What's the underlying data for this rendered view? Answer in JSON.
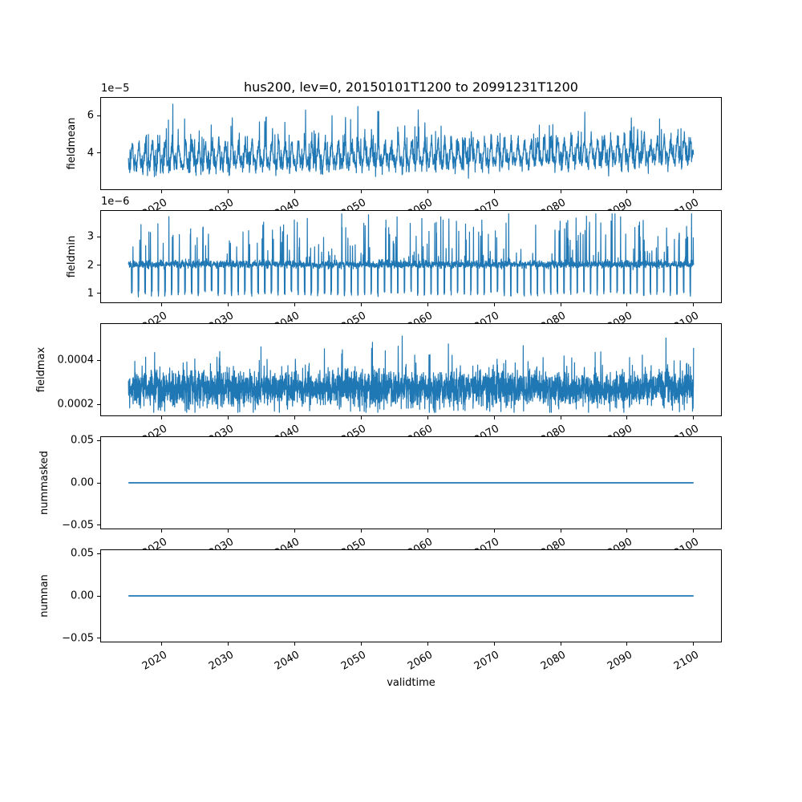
{
  "title": "hus200, lev=0, 20150101T1200 to 20991231T1200",
  "xlabel": "validtime",
  "line_color": "#1f77b4",
  "axis_color": "#000000",
  "chart_data": {
    "type": "line",
    "title": "hus200, lev=0, 20150101T1200 to 20991231T1200",
    "xlabel": "validtime",
    "legend": "none",
    "grid": false,
    "x_data_range": [
      2015.0,
      2100.0
    ],
    "xlim": [
      2010.75,
      2104.25
    ],
    "xticks": [
      2020,
      2030,
      2040,
      2050,
      2060,
      2070,
      2080,
      2090,
      2100
    ],
    "xtick_labels": [
      "2020",
      "2030",
      "2040",
      "2050",
      "2060",
      "2070",
      "2080",
      "2090",
      "2100"
    ],
    "xtick_rotation_deg": 30,
    "panels": [
      {
        "name": "fieldmean",
        "ylabel": "fieldmean",
        "offset_text": "1e−5",
        "unit_scale": 1e-05,
        "ylim": [
          2.0,
          7.0
        ],
        "yticks": [
          {
            "v": 4,
            "label": "4"
          },
          {
            "v": 6,
            "label": "6"
          }
        ],
        "series_model": {
          "kind": "seasonal",
          "seed": 1337,
          "points_per_year": 36,
          "base": 3.7,
          "trend": 0.28,
          "season": [
            [
              1,
              0.52,
              4.2
            ],
            [
              2,
              0.24,
              1.1
            ],
            [
              3,
              0.12,
              2.0
            ]
          ],
          "noise": 0.22,
          "spike_prob": 0.06,
          "spike_amp": 2.1,
          "dip_prob": 0.006,
          "dip_amp": 1.0,
          "clamp": [
            2.3,
            6.62
          ]
        },
        "line_width": 1.2
      },
      {
        "name": "fieldmin",
        "ylabel": "fieldmin",
        "offset_text": "1e−6",
        "unit_scale": 1e-06,
        "ylim": [
          0.65,
          3.95
        ],
        "yticks": [
          {
            "v": 1,
            "label": "1"
          },
          {
            "v": 2,
            "label": "2"
          },
          {
            "v": 3,
            "label": "3"
          }
        ],
        "series_model": {
          "kind": "dipper",
          "seed": 2021,
          "points_per_year": 40,
          "base": 2.03,
          "noise": 0.06,
          "dip_window": [
            0.45,
            0.57
          ],
          "dip_level": 1.04,
          "dip_noise": 0.07,
          "spike_prob": 0.08,
          "spike_amp": 1.6,
          "late_boost": 0.25,
          "deep_dip_prob": 0.0008,
          "deep_dip_level": 0.78,
          "clamp": [
            0.74,
            3.82
          ]
        },
        "line_width": 1.2
      },
      {
        "name": "fieldmax",
        "ylabel": "fieldmax",
        "offset_text": null,
        "unit_scale": 1,
        "ylim": [
          0.000145,
          0.00057
        ],
        "yticks": [
          {
            "v": 0.0002,
            "label": "0.0002"
          },
          {
            "v": 0.0004,
            "label": "0.0004"
          }
        ],
        "series_model": {
          "kind": "noise",
          "seed": 777,
          "points_per_year": 40,
          "base": 0.000272,
          "noise": 4.1e-05,
          "spike_prob": 0.055,
          "spike_amp": 0.00016,
          "dip_prob": 0.02,
          "dip_amp": 6e-05,
          "clamp": [
            0.000163,
            0.00055
          ]
        },
        "line_width": 1.2
      },
      {
        "name": "nummasked",
        "ylabel": "nummasked",
        "offset_text": null,
        "unit_scale": 1,
        "ylim": [
          -0.055,
          0.055
        ],
        "yticks": [
          {
            "v": -0.05,
            "label": "−0.05"
          },
          {
            "v": 0.0,
            "label": "0.00"
          },
          {
            "v": 0.05,
            "label": "0.05"
          }
        ],
        "series_model": {
          "kind": "constant",
          "value": 0.0
        },
        "line_width": 1.8
      },
      {
        "name": "numnan",
        "ylabel": "numnan",
        "offset_text": null,
        "unit_scale": 1,
        "ylim": [
          -0.055,
          0.055
        ],
        "yticks": [
          {
            "v": -0.05,
            "label": "−0.05"
          },
          {
            "v": 0.0,
            "label": "0.00"
          },
          {
            "v": 0.05,
            "label": "0.05"
          }
        ],
        "series_model": {
          "kind": "constant",
          "value": 0.0
        },
        "line_width": 1.8
      }
    ]
  }
}
